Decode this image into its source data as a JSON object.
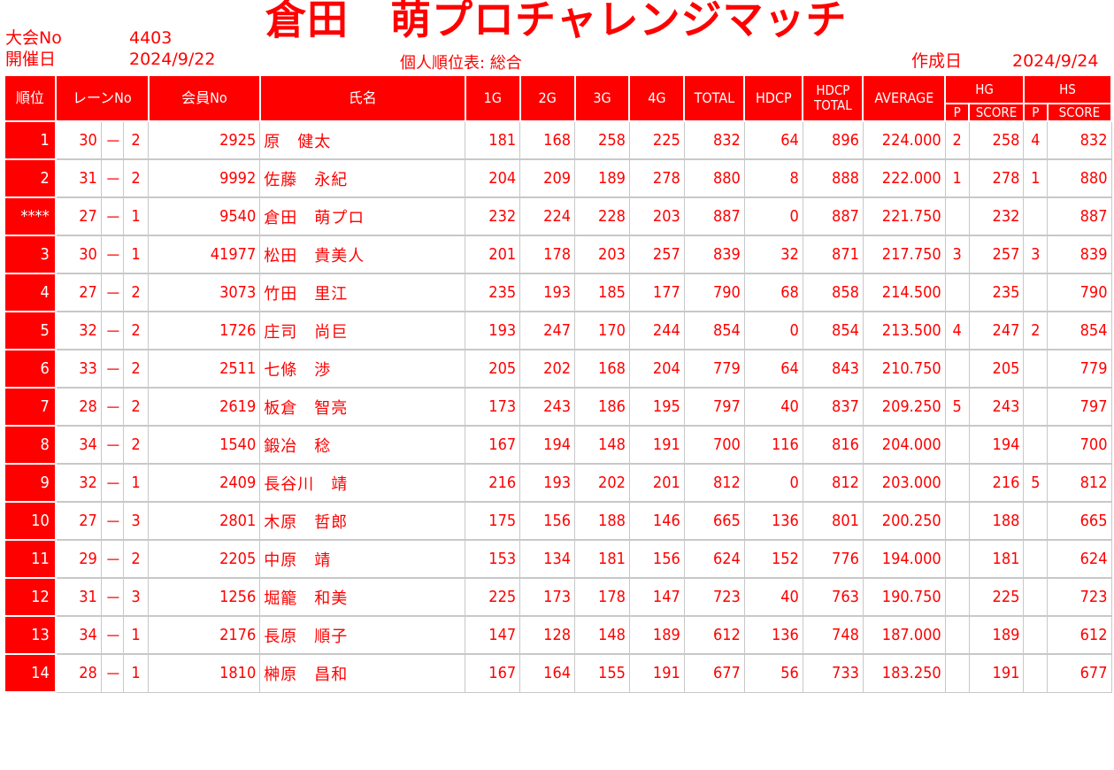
{
  "header": {
    "tournament_no_label": "大会No",
    "tournament_no": "4403",
    "date_label": "開催日",
    "date": "2024/9/22",
    "title": "倉田　萌プロチャレンジマッチ",
    "subtitle": "個人順位表: 総合",
    "created_label": "作成日",
    "created_date": "2024/9/24"
  },
  "columns": {
    "rank": "順位",
    "lane": "レーンNo",
    "member": "会員No",
    "name": "氏名",
    "g1": "1G",
    "g2": "2G",
    "g3": "3G",
    "g4": "4G",
    "total": "TOTAL",
    "hdcp": "HDCP",
    "hdcp_total_1": "HDCP",
    "hdcp_total_2": "TOTAL",
    "average": "AVERAGE",
    "hg": "HG",
    "hs": "HS",
    "hg_p": "P",
    "hg_score": "SCORE",
    "hs_p": "P",
    "hs_score": "SCORE"
  },
  "rows": [
    {
      "rank": "1",
      "lane": "30",
      "sep": "－",
      "pos": "2",
      "member": "2925",
      "name": "原　健太",
      "g1": "181",
      "g2": "168",
      "g3": "258",
      "g4": "225",
      "total": "832",
      "hdcp": "64",
      "hdcp_total": "896",
      "average": "224.000",
      "hg_p": "2",
      "hg_score": "258",
      "hs_p": "4",
      "hs_score": "832"
    },
    {
      "rank": "2",
      "lane": "31",
      "sep": "－",
      "pos": "2",
      "member": "9992",
      "name": "佐藤　永紀",
      "g1": "204",
      "g2": "209",
      "g3": "189",
      "g4": "278",
      "total": "880",
      "hdcp": "8",
      "hdcp_total": "888",
      "average": "222.000",
      "hg_p": "1",
      "hg_score": "278",
      "hs_p": "1",
      "hs_score": "880"
    },
    {
      "rank": "****",
      "lane": "27",
      "sep": "－",
      "pos": "1",
      "member": "9540",
      "name": "倉田　萌プロ",
      "g1": "232",
      "g2": "224",
      "g3": "228",
      "g4": "203",
      "total": "887",
      "hdcp": "0",
      "hdcp_total": "887",
      "average": "221.750",
      "hg_p": "",
      "hg_score": "232",
      "hs_p": "",
      "hs_score": "887"
    },
    {
      "rank": "3",
      "lane": "30",
      "sep": "－",
      "pos": "1",
      "member": "41977",
      "name": "松田　貴美人",
      "g1": "201",
      "g2": "178",
      "g3": "203",
      "g4": "257",
      "total": "839",
      "hdcp": "32",
      "hdcp_total": "871",
      "average": "217.750",
      "hg_p": "3",
      "hg_score": "257",
      "hs_p": "3",
      "hs_score": "839"
    },
    {
      "rank": "4",
      "lane": "27",
      "sep": "－",
      "pos": "2",
      "member": "3073",
      "name": "竹田　里江",
      "g1": "235",
      "g2": "193",
      "g3": "185",
      "g4": "177",
      "total": "790",
      "hdcp": "68",
      "hdcp_total": "858",
      "average": "214.500",
      "hg_p": "",
      "hg_score": "235",
      "hs_p": "",
      "hs_score": "790"
    },
    {
      "rank": "5",
      "lane": "32",
      "sep": "－",
      "pos": "2",
      "member": "1726",
      "name": "庄司　尚巨",
      "g1": "193",
      "g2": "247",
      "g3": "170",
      "g4": "244",
      "total": "854",
      "hdcp": "0",
      "hdcp_total": "854",
      "average": "213.500",
      "hg_p": "4",
      "hg_score": "247",
      "hs_p": "2",
      "hs_score": "854"
    },
    {
      "rank": "6",
      "lane": "33",
      "sep": "－",
      "pos": "2",
      "member": "2511",
      "name": "七條　渉",
      "g1": "205",
      "g2": "202",
      "g3": "168",
      "g4": "204",
      "total": "779",
      "hdcp": "64",
      "hdcp_total": "843",
      "average": "210.750",
      "hg_p": "",
      "hg_score": "205",
      "hs_p": "",
      "hs_score": "779"
    },
    {
      "rank": "7",
      "lane": "28",
      "sep": "－",
      "pos": "2",
      "member": "2619",
      "name": "板倉　智亮",
      "g1": "173",
      "g2": "243",
      "g3": "186",
      "g4": "195",
      "total": "797",
      "hdcp": "40",
      "hdcp_total": "837",
      "average": "209.250",
      "hg_p": "5",
      "hg_score": "243",
      "hs_p": "",
      "hs_score": "797"
    },
    {
      "rank": "8",
      "lane": "34",
      "sep": "－",
      "pos": "2",
      "member": "1540",
      "name": "鍛冶　稔",
      "g1": "167",
      "g2": "194",
      "g3": "148",
      "g4": "191",
      "total": "700",
      "hdcp": "116",
      "hdcp_total": "816",
      "average": "204.000",
      "hg_p": "",
      "hg_score": "194",
      "hs_p": "",
      "hs_score": "700"
    },
    {
      "rank": "9",
      "lane": "32",
      "sep": "－",
      "pos": "1",
      "member": "2409",
      "name": "長谷川　靖",
      "g1": "216",
      "g2": "193",
      "g3": "202",
      "g4": "201",
      "total": "812",
      "hdcp": "0",
      "hdcp_total": "812",
      "average": "203.000",
      "hg_p": "",
      "hg_score": "216",
      "hs_p": "5",
      "hs_score": "812"
    },
    {
      "rank": "10",
      "lane": "27",
      "sep": "－",
      "pos": "3",
      "member": "2801",
      "name": "木原　哲郎",
      "g1": "175",
      "g2": "156",
      "g3": "188",
      "g4": "146",
      "total": "665",
      "hdcp": "136",
      "hdcp_total": "801",
      "average": "200.250",
      "hg_p": "",
      "hg_score": "188",
      "hs_p": "",
      "hs_score": "665"
    },
    {
      "rank": "11",
      "lane": "29",
      "sep": "－",
      "pos": "2",
      "member": "2205",
      "name": "中原　靖",
      "g1": "153",
      "g2": "134",
      "g3": "181",
      "g4": "156",
      "total": "624",
      "hdcp": "152",
      "hdcp_total": "776",
      "average": "194.000",
      "hg_p": "",
      "hg_score": "181",
      "hs_p": "",
      "hs_score": "624"
    },
    {
      "rank": "12",
      "lane": "31",
      "sep": "－",
      "pos": "3",
      "member": "1256",
      "name": "堀籠　和美",
      "g1": "225",
      "g2": "173",
      "g3": "178",
      "g4": "147",
      "total": "723",
      "hdcp": "40",
      "hdcp_total": "763",
      "average": "190.750",
      "hg_p": "",
      "hg_score": "225",
      "hs_p": "",
      "hs_score": "723"
    },
    {
      "rank": "13",
      "lane": "34",
      "sep": "－",
      "pos": "1",
      "member": "2176",
      "name": "長原　順子",
      "g1": "147",
      "g2": "128",
      "g3": "148",
      "g4": "189",
      "total": "612",
      "hdcp": "136",
      "hdcp_total": "748",
      "average": "187.000",
      "hg_p": "",
      "hg_score": "189",
      "hs_p": "",
      "hs_score": "612"
    },
    {
      "rank": "14",
      "lane": "28",
      "sep": "－",
      "pos": "1",
      "member": "1810",
      "name": "榊原　昌和",
      "g1": "167",
      "g2": "164",
      "g3": "155",
      "g4": "191",
      "total": "677",
      "hdcp": "56",
      "hdcp_total": "733",
      "average": "183.250",
      "hg_p": "",
      "hg_score": "191",
      "hs_p": "",
      "hs_score": "677"
    }
  ]
}
